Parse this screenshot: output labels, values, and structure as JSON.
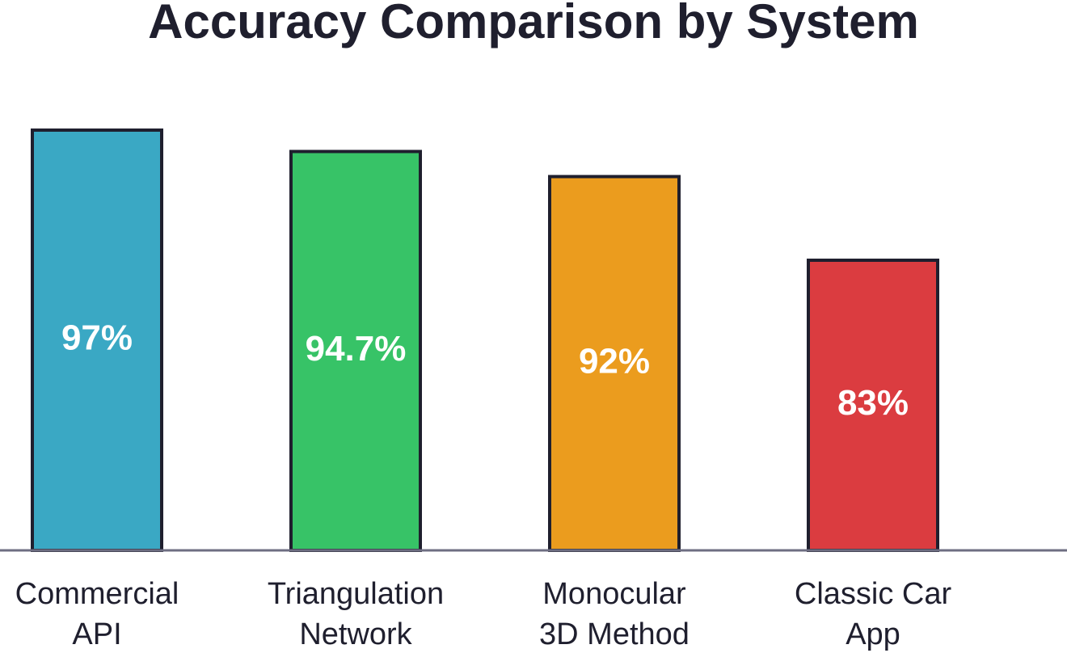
{
  "chart_data": {
    "type": "bar",
    "title": "Accuracy Comparison by System",
    "categories": [
      [
        "Commercial",
        "API"
      ],
      [
        "Triangulation",
        "Network"
      ],
      [
        "Monocular",
        "3D Method"
      ],
      [
        "Classic Car",
        "App"
      ]
    ],
    "values": [
      97,
      94.7,
      92,
      83
    ],
    "value_labels": [
      "97%",
      "94.7%",
      "92%",
      "83%"
    ],
    "colors": [
      "#3aa8c4",
      "#37c367",
      "#eb9c1e",
      "#db3c40"
    ],
    "grid": false,
    "legend": "none"
  }
}
